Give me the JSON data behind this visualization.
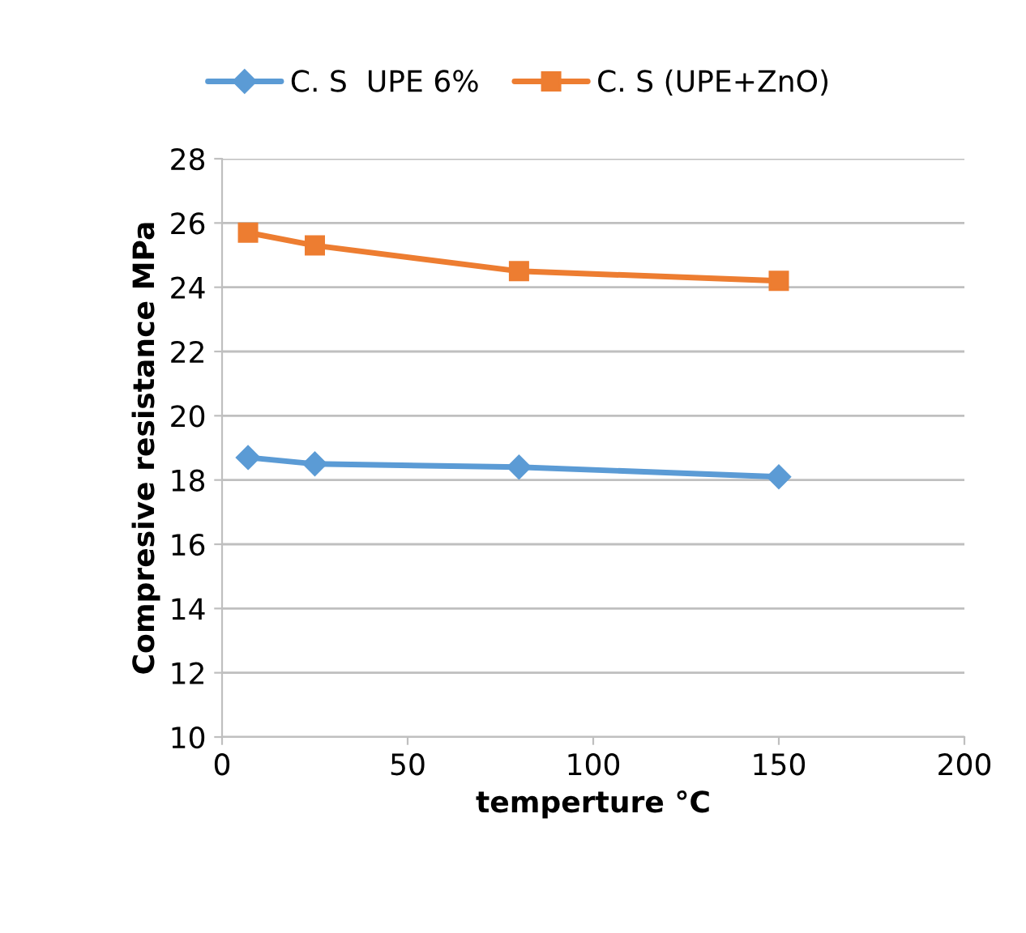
{
  "chart_data": {
    "type": "line",
    "xlabel": "temperture °C",
    "ylabel": "Compresive resistance MPa",
    "x": [
      7,
      25,
      80,
      150
    ],
    "series": [
      {
        "name": "C. S  UPE 6%",
        "color": "#5b9bd5",
        "marker": "diamond",
        "values": [
          18.7,
          18.5,
          18.4,
          18.1
        ]
      },
      {
        "name": "C. S (UPE+ZnO)",
        "color": "#ed7d31",
        "marker": "square",
        "values": [
          25.7,
          25.3,
          24.5,
          24.2
        ]
      }
    ],
    "xlim": [
      0,
      200
    ],
    "xticks": [
      0,
      50,
      100,
      150,
      200
    ],
    "ylim": [
      10,
      28
    ],
    "yticks": [
      10,
      12,
      14,
      16,
      18,
      20,
      22,
      24,
      26,
      28
    ],
    "grid": "y",
    "legend": "top",
    "line_style": "solid"
  }
}
